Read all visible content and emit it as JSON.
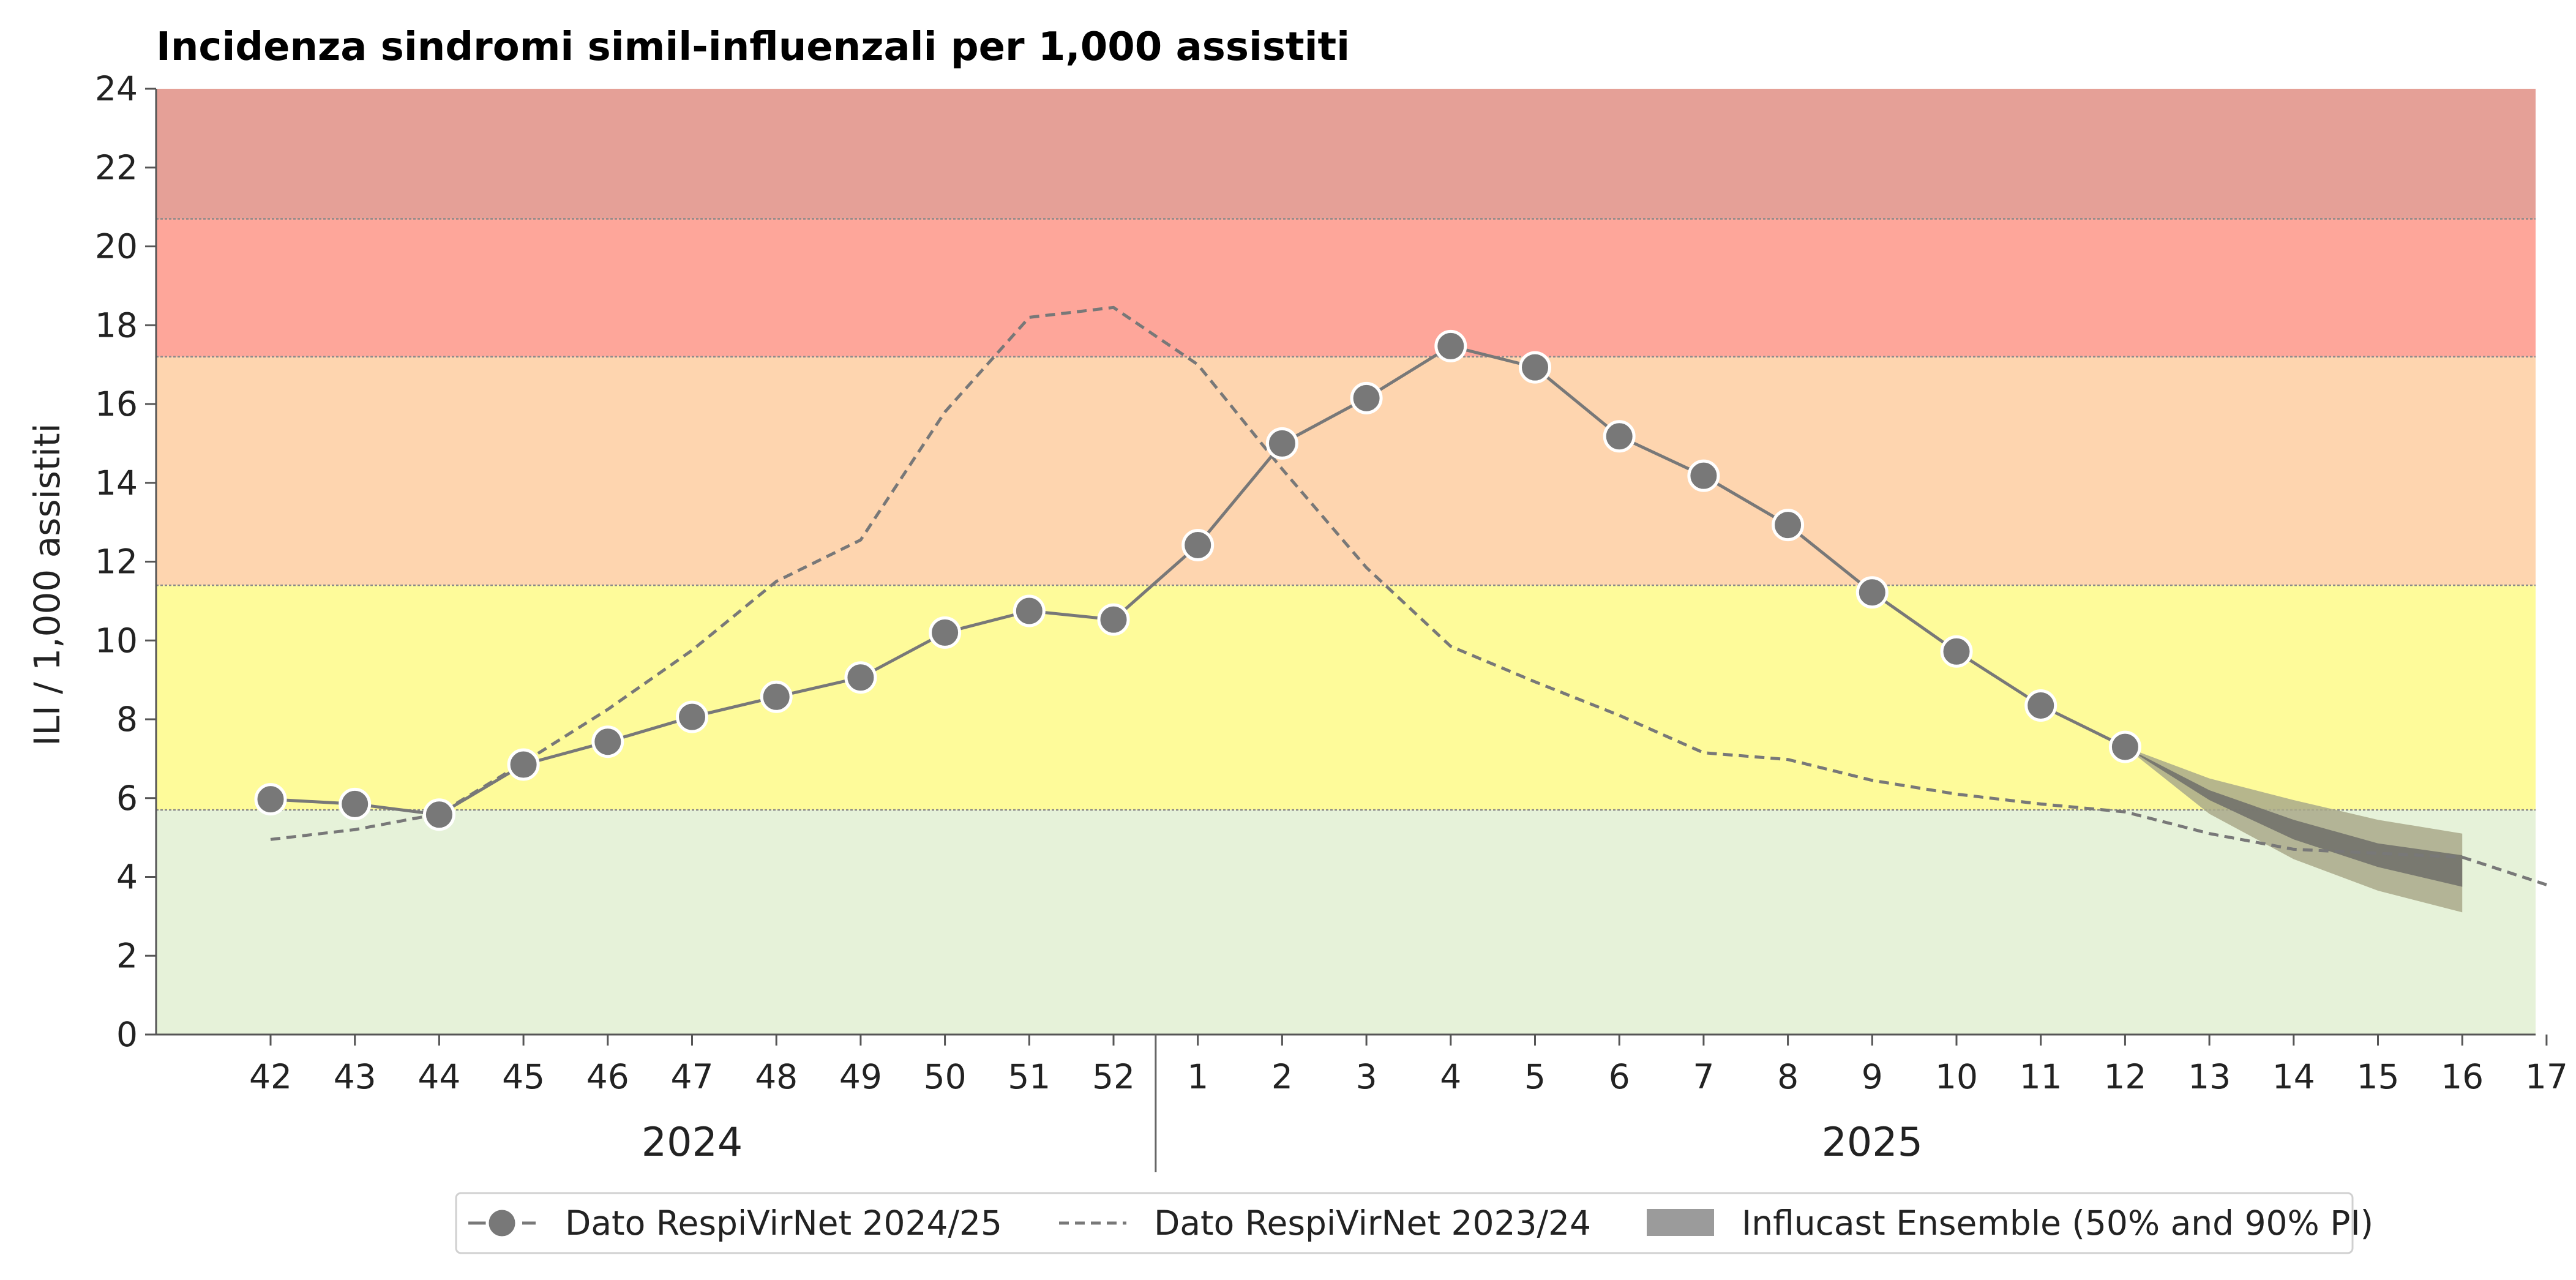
{
  "chart_data": {
    "type": "line",
    "title": "Incidenza sindromi simil-influenzali per 1,000 assistiti",
    "ylabel": "ILI / 1,000 assistiti",
    "xlabel": "",
    "ylim": [
      0,
      24
    ],
    "yticks": [
      "0",
      "2",
      "4",
      "6",
      "8",
      "10",
      "12",
      "14",
      "16",
      "18",
      "20",
      "22",
      "24"
    ],
    "categories": [
      "42",
      "43",
      "44",
      "45",
      "46",
      "47",
      "48",
      "49",
      "50",
      "51",
      "52",
      "1",
      "2",
      "3",
      "4",
      "5",
      "6",
      "7",
      "8",
      "9",
      "10",
      "11",
      "12",
      "13",
      "14",
      "15",
      "16",
      "17"
    ],
    "year_labels": [
      {
        "label": "2024",
        "from": "42",
        "to": "52"
      },
      {
        "label": "2025",
        "from": "1",
        "to": "17"
      }
    ],
    "intensity_bands": [
      {
        "from": 0,
        "to": 5.7,
        "color": "#e6f2d9"
      },
      {
        "from": 5.7,
        "to": 11.4,
        "color": "#fefb9a"
      },
      {
        "from": 11.4,
        "to": 17.2,
        "color": "#fed5af"
      },
      {
        "from": 17.2,
        "to": 20.7,
        "color": "#fea69a"
      },
      {
        "from": 20.7,
        "to": 24,
        "color": "#e5a097"
      }
    ],
    "series": [
      {
        "name": "Dato RespiVirNet 2024/25",
        "style": "solid-markers",
        "color": "#787878",
        "x": [
          "42",
          "43",
          "44",
          "45",
          "46",
          "47",
          "48",
          "49",
          "50",
          "51",
          "52",
          "1",
          "2",
          "3",
          "4",
          "5",
          "6",
          "7",
          "8",
          "9",
          "10",
          "11",
          "12"
        ],
        "values": [
          5.97,
          5.85,
          5.58,
          6.85,
          7.43,
          8.06,
          8.57,
          9.06,
          10.2,
          10.75,
          10.53,
          12.42,
          15.0,
          16.15,
          17.47,
          16.93,
          15.18,
          14.18,
          12.93,
          11.22,
          9.72,
          8.35,
          7.3
        ]
      },
      {
        "name": "Dato RespiVirNet 2023/24",
        "style": "dashed",
        "color": "#787878",
        "x": [
          "42",
          "43",
          "44",
          "45",
          "46",
          "47",
          "48",
          "49",
          "50",
          "51",
          "52",
          "1",
          "2",
          "3",
          "4",
          "5",
          "6",
          "7",
          "8",
          "9",
          "10",
          "11",
          "12",
          "13",
          "14",
          "15",
          "16",
          "17"
        ],
        "values": [
          4.95,
          5.2,
          5.6,
          6.9,
          8.25,
          9.75,
          11.5,
          12.55,
          15.8,
          18.2,
          18.45,
          17.0,
          14.35,
          11.85,
          9.85,
          8.95,
          8.1,
          7.15,
          6.98,
          6.45,
          6.1,
          5.85,
          5.65,
          5.1,
          4.7,
          4.6,
          4.5,
          3.8
        ]
      }
    ],
    "forecast": {
      "name": "Influcast Ensemble (50% and 90% PI)",
      "x": [
        "12",
        "13",
        "14",
        "15",
        "16"
      ],
      "pi90_low": [
        7.3,
        5.6,
        4.45,
        3.65,
        3.1
      ],
      "pi90_high": [
        7.3,
        6.5,
        5.95,
        5.45,
        5.1
      ],
      "pi50_low": [
        7.3,
        5.95,
        4.95,
        4.25,
        3.75
      ],
      "pi50_high": [
        7.3,
        6.2,
        5.45,
        4.85,
        4.55
      ],
      "pi90_color": "#a9a98a",
      "pi50_color": "#6e6e6a"
    },
    "legend_position": "bottom",
    "grid": false
  }
}
